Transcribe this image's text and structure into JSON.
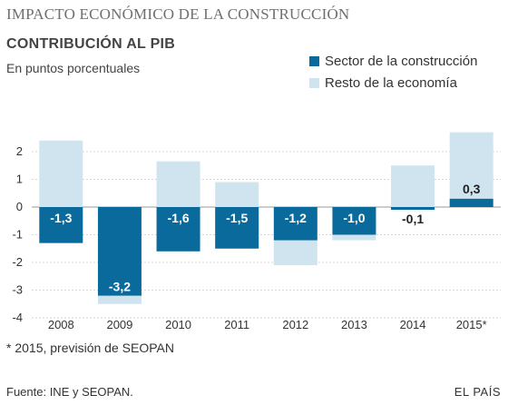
{
  "header": {
    "supertitle": "IMPACTO ECONÓMICO DE LA CONSTRUCCIÓN",
    "title": "CONTRIBUCIÓN AL PIB",
    "subtitle": "En puntos porcentuales"
  },
  "legend": {
    "items": [
      {
        "label": "Sector de la construcción",
        "color": "#0a6a9c"
      },
      {
        "label": "Resto de la economía",
        "color": "#cfe4ee"
      }
    ]
  },
  "footer": {
    "footnote": "* 2015, previsión de SEOPAN",
    "source": "Fuente: INE y SEOPAN.",
    "brand": "EL PAÍS"
  },
  "chart_data": {
    "type": "bar",
    "stacked": true,
    "categories": [
      "2008",
      "2009",
      "2010",
      "2011",
      "2012",
      "2013",
      "2014",
      "2015*"
    ],
    "ylim": [
      -4,
      2.5
    ],
    "yticks": [
      "2",
      "1",
      "0",
      "-1",
      "-2",
      "-3",
      "-4"
    ],
    "grid": true,
    "legend_position": "top-right",
    "series": [
      {
        "name": "Sector de la construcción",
        "color": "#0a6a9c",
        "values": [
          -1.3,
          -3.2,
          -1.6,
          -1.5,
          -1.2,
          -1.0,
          -0.1,
          0.3
        ],
        "labels": [
          "-1,3",
          "-3,2",
          "-1,6",
          "-1,5",
          "-1,2",
          "-1,0",
          "-0,1",
          "0,3"
        ]
      },
      {
        "name": "Resto de la economía",
        "color": "#cfe4ee",
        "values": [
          2.4,
          -0.3,
          1.65,
          0.9,
          -0.9,
          -0.2,
          1.5,
          2.4
        ]
      }
    ]
  }
}
